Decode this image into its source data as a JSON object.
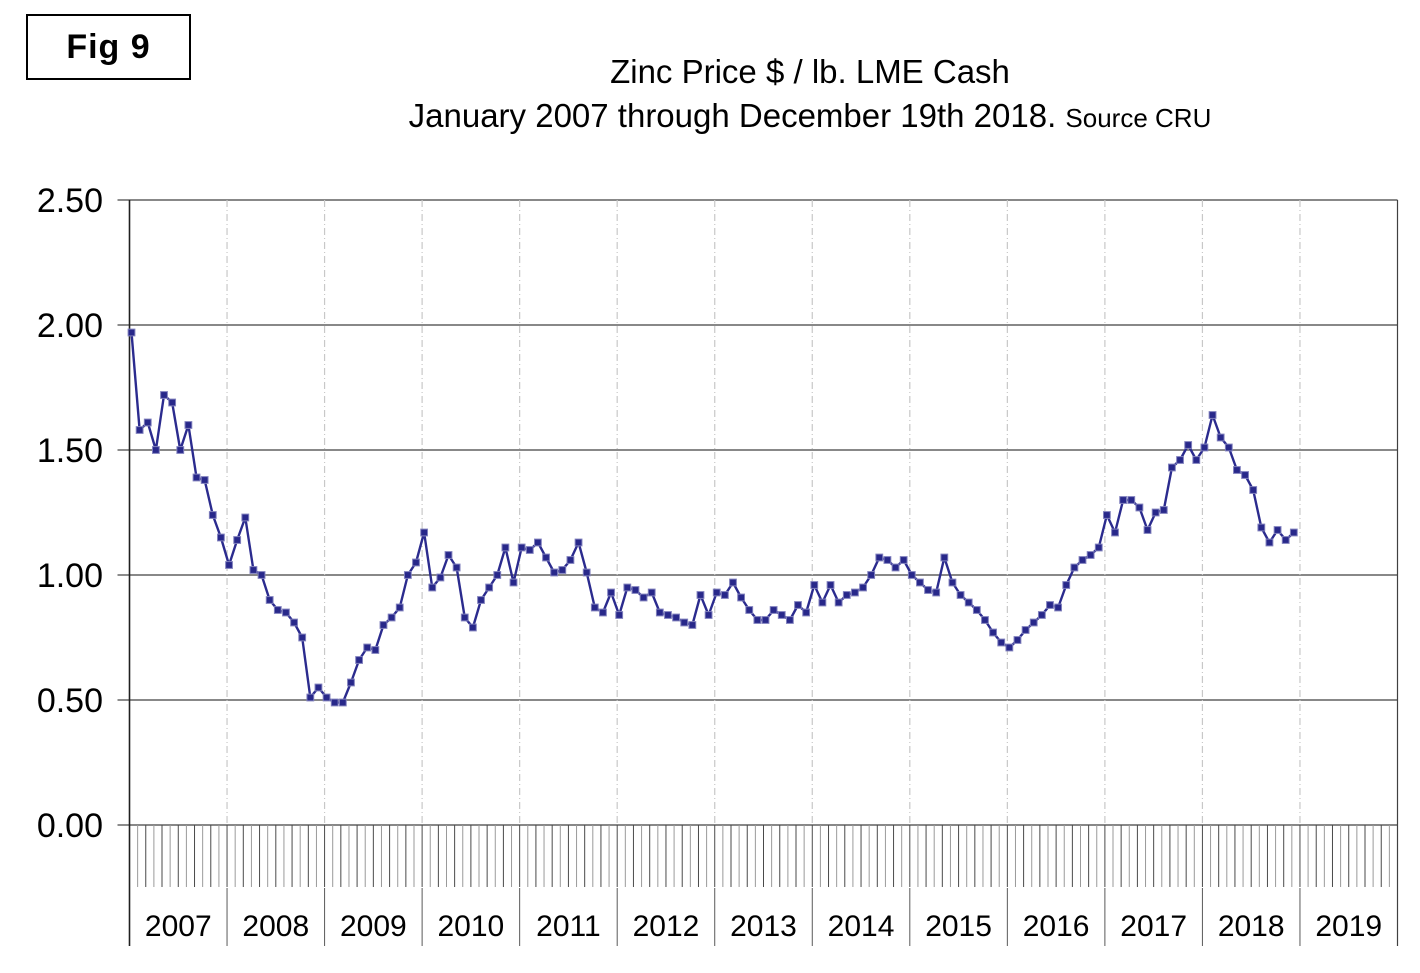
{
  "figure_label": "Fig 9",
  "header": {
    "title": "Zinc Price $ / lb. LME Cash",
    "subtitle": "January 2007 through December 19th 2018.",
    "source": "Source CRU"
  },
  "colors": {
    "line": "#2b2b8e",
    "marker_fill": "#28288a",
    "marker_edge": "#8080bd",
    "gridline": "#404040",
    "year_dashline": "#c8c8c8",
    "tick_dark": "#4a4a4a",
    "tick_light": "#9a9a9a",
    "divider": "#595959",
    "text": "#000000"
  },
  "chart_data": {
    "type": "line",
    "title": "Zinc Price $ / lb. LME Cash",
    "subtitle": "January 2007 through December 19th 2018. Source CRU",
    "xlabel": "",
    "ylabel": "",
    "frequency": "monthly",
    "start_month": "2007-01",
    "end_month": "2018-12",
    "x_year_labels": [
      "2007",
      "2008",
      "2009",
      "2010",
      "2011",
      "2012",
      "2013",
      "2014",
      "2015",
      "2016",
      "2017",
      "2018",
      "2019"
    ],
    "y_tick_labels": [
      "2.50",
      "2.00",
      "1.50",
      "1.00",
      "0.50",
      "0.00"
    ],
    "ylim": [
      0.0,
      2.5
    ],
    "grid": "horizontal solid, vertical dashed at year boundaries",
    "legend": "none",
    "marker": "square",
    "series": [
      {
        "name": "Zinc price $/lb LME Cash",
        "values_by_year": {
          "2007": [
            1.97,
            1.58,
            1.61,
            1.5,
            1.72,
            1.69,
            1.5,
            1.6,
            1.39,
            1.38,
            1.24,
            1.15
          ],
          "2008": [
            1.04,
            1.14,
            1.23,
            1.02,
            1.0,
            0.9,
            0.86,
            0.85,
            0.81,
            0.75,
            0.51,
            0.55
          ],
          "2009": [
            0.51,
            0.49,
            0.49,
            0.57,
            0.66,
            0.71,
            0.7,
            0.8,
            0.83,
            0.87,
            1.0,
            1.05
          ],
          "2010": [
            1.17,
            0.95,
            0.99,
            1.08,
            1.03,
            0.83,
            0.79,
            0.9,
            0.95,
            1.0,
            1.11,
            0.97
          ],
          "2011": [
            1.11,
            1.1,
            1.13,
            1.07,
            1.01,
            1.02,
            1.06,
            1.13,
            1.01,
            0.87,
            0.85,
            0.93
          ],
          "2012": [
            0.84,
            0.95,
            0.94,
            0.91,
            0.93,
            0.85,
            0.84,
            0.83,
            0.81,
            0.8,
            0.92,
            0.84
          ],
          "2013": [
            0.93,
            0.92,
            0.97,
            0.91,
            0.86,
            0.82,
            0.82,
            0.86,
            0.84,
            0.82,
            0.88,
            0.85
          ],
          "2014": [
            0.96,
            0.89,
            0.96,
            0.89,
            0.92,
            0.93,
            0.95,
            1.0,
            1.07,
            1.06,
            1.03,
            1.06
          ],
          "2015": [
            1.0,
            0.97,
            0.94,
            0.93,
            1.07,
            0.97,
            0.92,
            0.89,
            0.86,
            0.82,
            0.77,
            0.73
          ],
          "2016": [
            0.71,
            0.74,
            0.78,
            0.81,
            0.84,
            0.88,
            0.87,
            0.96,
            1.03,
            1.06,
            1.08,
            1.11
          ],
          "2017": [
            1.24,
            1.17,
            1.3,
            1.3,
            1.27,
            1.18,
            1.25,
            1.26,
            1.43,
            1.46,
            1.52,
            1.46
          ],
          "2018": [
            1.51,
            1.64,
            1.55,
            1.51,
            1.42,
            1.4,
            1.34,
            1.19,
            1.13,
            1.18,
            1.14,
            1.17
          ]
        }
      }
    ]
  }
}
